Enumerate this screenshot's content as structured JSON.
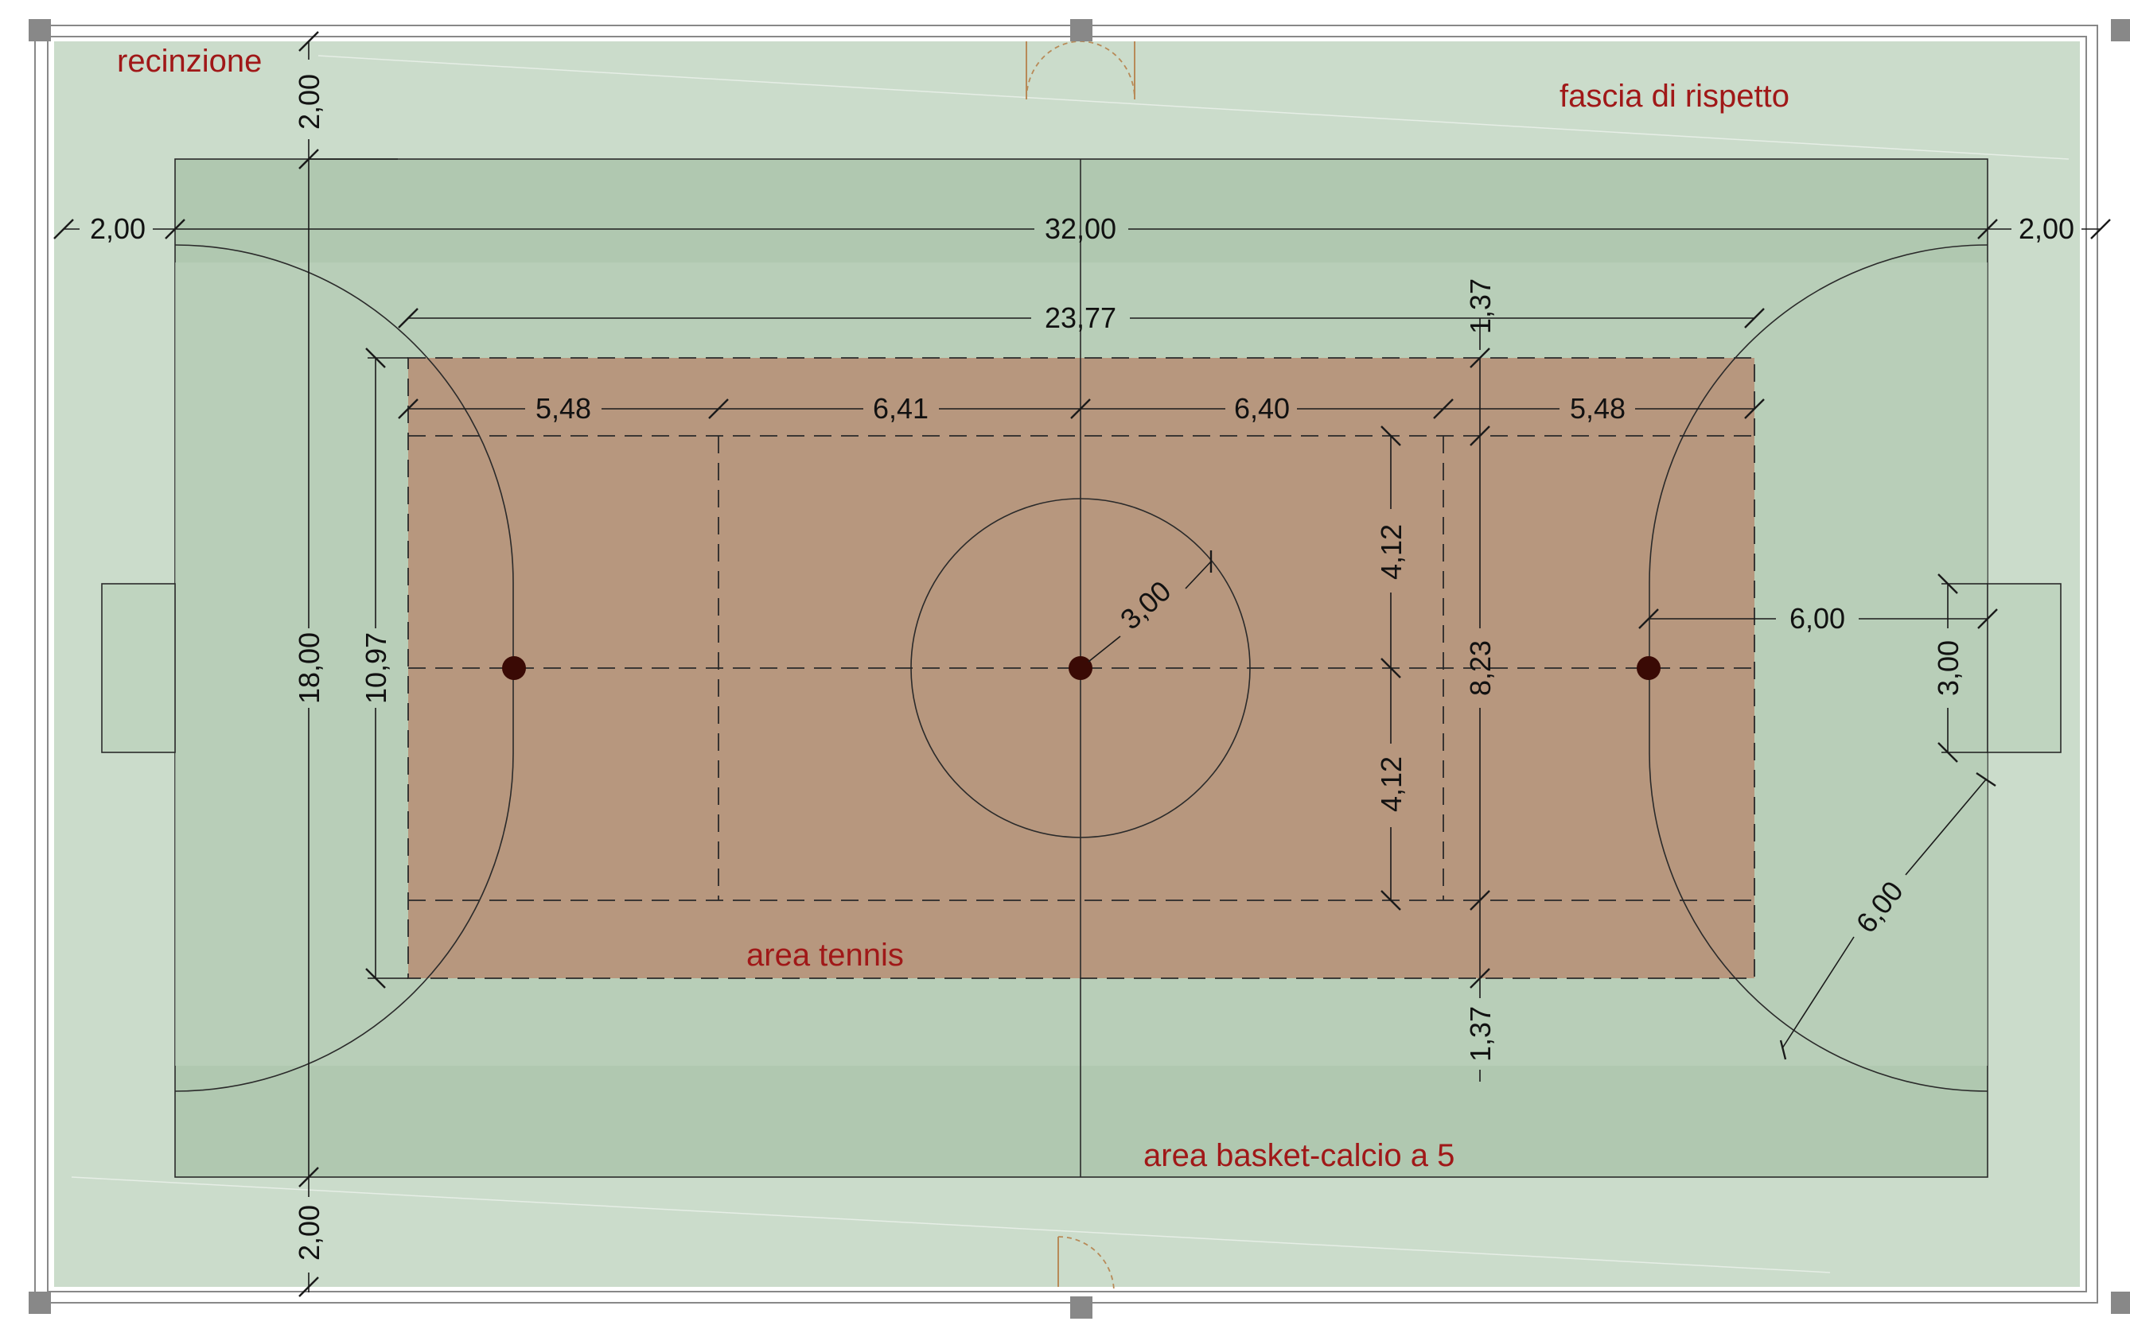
{
  "labels": {
    "fence": "recinzione",
    "buffer": "fascia di rispetto",
    "tennis": "area tennis",
    "basket": "area basket-calcio a 5"
  },
  "dimensions": {
    "margin_top": "2,00",
    "margin_bottom": "2,00",
    "margin_left": "2,00",
    "margin_right": "2,00",
    "overall_length": "32,00",
    "overall_width": "18,00",
    "tennis_length": "23,77",
    "tennis_width": "10,97",
    "alley_top": "1,37",
    "alley_bottom": "1,37",
    "service_left_back": "5,48",
    "service_left": "6,41",
    "service_right": "6,40",
    "service_right_back": "5,48",
    "half_service_top": "4,12",
    "half_service_bottom": "4,12",
    "singles_width": "8,23",
    "center_radius": "3,00",
    "penalty_distance": "6,00",
    "goal_width": "3,00",
    "area_radius": "6,00"
  },
  "colors": {
    "buffer_zone": "#cbdccb",
    "court": "#b0c8b0",
    "tennis_area": "#b7977e",
    "label_red": "#a01818",
    "spot": "#3a0a05"
  }
}
